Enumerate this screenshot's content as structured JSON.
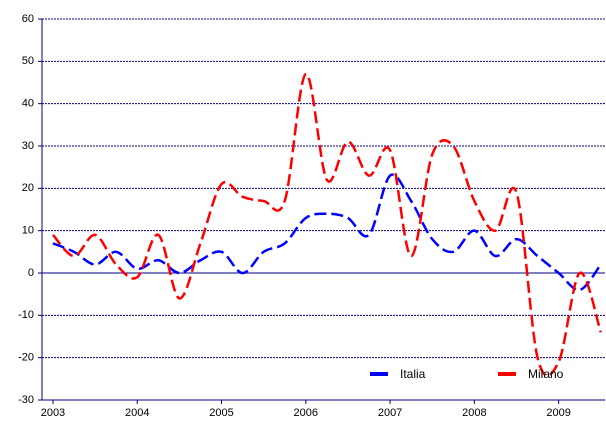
{
  "chart_data": {
    "type": "line",
    "x": [
      2003.0,
      2003.25,
      2003.5,
      2003.75,
      2004.0,
      2004.25,
      2004.5,
      2004.75,
      2005.0,
      2005.25,
      2005.5,
      2005.75,
      2006.0,
      2006.25,
      2006.5,
      2006.75,
      2007.0,
      2007.25,
      2007.5,
      2007.75,
      2008.0,
      2008.25,
      2008.5,
      2008.75,
      2009.0,
      2009.25,
      2009.5
    ],
    "series": [
      {
        "name": "Italia",
        "color": "#0000ff",
        "values": [
          7,
          5,
          2,
          5,
          1,
          3,
          0,
          3,
          5,
          0,
          5,
          7,
          13,
          14,
          13,
          9,
          23,
          17,
          8,
          5,
          10,
          4,
          8,
          4,
          0,
          -4,
          2
        ]
      },
      {
        "name": "Milano",
        "color": "#ff0000",
        "values": [
          9,
          4,
          9,
          2,
          -1,
          9,
          -6,
          7,
          21,
          18,
          17,
          17,
          47,
          22,
          31,
          23,
          29,
          4,
          28,
          30,
          17,
          10,
          19,
          -20,
          -21,
          0,
          -14
        ]
      }
    ],
    "xlim": [
      2002.87,
      2009.55
    ],
    "xticks": [
      2003,
      2004,
      2005,
      2006,
      2007,
      2008,
      2009
    ],
    "ylim": [
      -30,
      60
    ],
    "yticks": [
      -30,
      -20,
      -10,
      0,
      10,
      20,
      30,
      40,
      50,
      60
    ],
    "grid": true,
    "legend": "lower right"
  }
}
